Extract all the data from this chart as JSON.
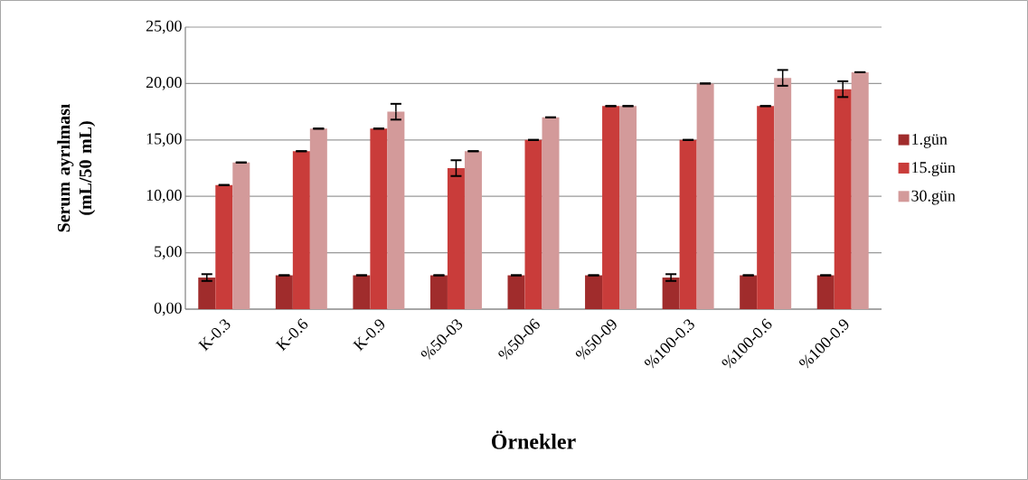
{
  "chart_data": {
    "type": "bar",
    "xlabel": "Örnekler",
    "ylabel": "Serum ayrılması (mL/50 mL)",
    "categories": [
      "K-0.3",
      "K-0.6",
      "K-0.9",
      "%50-03",
      "%50-06",
      "%50-09",
      "%100-0.3",
      "%100-0.6",
      "%100-0.9"
    ],
    "series": [
      {
        "name": "1.gün",
        "color": "#a02c2c",
        "values": [
          2.8,
          3,
          3,
          3,
          3,
          3,
          2.8,
          3,
          3
        ],
        "errors": [
          0.3,
          0,
          0,
          0,
          0,
          0,
          0.3,
          0,
          0
        ]
      },
      {
        "name": "15.gün",
        "color": "#c93c3a",
        "values": [
          11,
          14,
          16,
          12.5,
          15,
          18,
          15,
          18,
          19.5
        ],
        "errors": [
          0,
          0,
          0,
          0.7,
          0,
          0,
          0,
          0,
          0.7
        ]
      },
      {
        "name": "30.gün",
        "color": "#d39a9a",
        "values": [
          13,
          16,
          17.5,
          14,
          17,
          18,
          20,
          20.5,
          21
        ],
        "errors": [
          0,
          0,
          0.7,
          0,
          0,
          0,
          0,
          0.7,
          0
        ]
      }
    ],
    "ylim": [
      0,
      25
    ],
    "yticks": [
      {
        "value": 0,
        "label": "0,00"
      },
      {
        "value": 5,
        "label": "5,00"
      },
      {
        "value": 10,
        "label": "10,00"
      },
      {
        "value": 15,
        "label": "15,00"
      },
      {
        "value": 20,
        "label": "20,00"
      },
      {
        "value": 25,
        "label": "25,00"
      }
    ],
    "grid": "y",
    "legend": "right"
  }
}
